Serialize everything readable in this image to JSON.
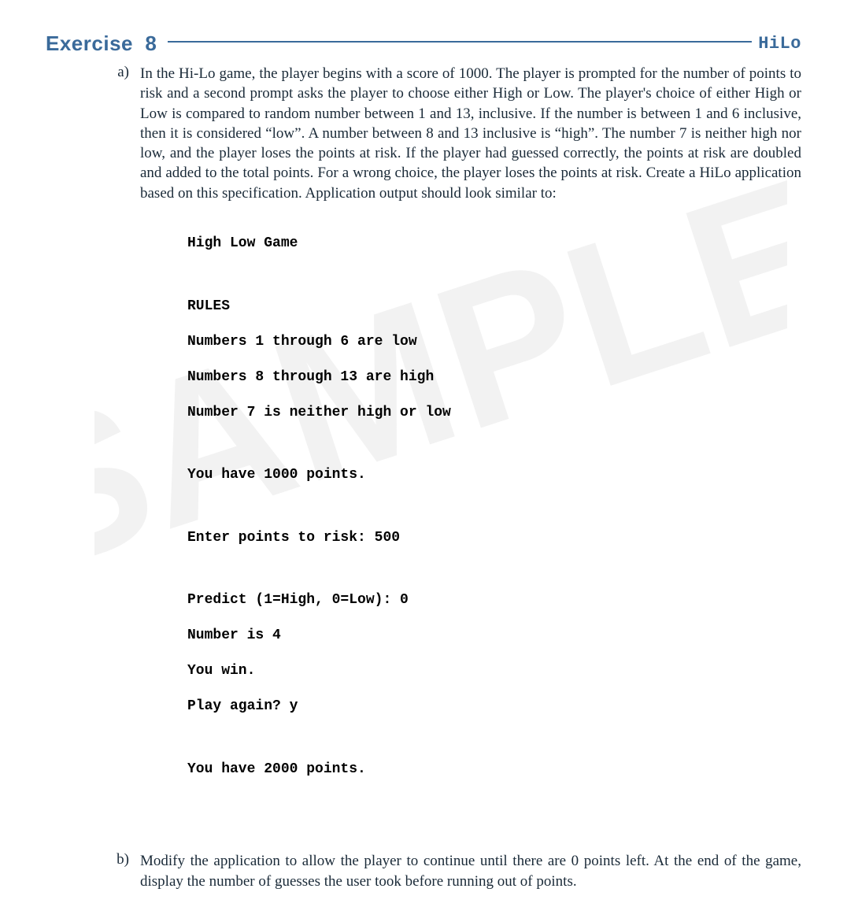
{
  "colors": {
    "heading": "#3a6a9a",
    "rule": "#3a6a9a",
    "body_text": "#1a2a38",
    "console_text": "#000000",
    "watermark": "#e9e9e9",
    "background": "#ffffff"
  },
  "typography": {
    "heading_family": "Arial, Helvetica, sans-serif",
    "heading_size_pt": 20,
    "body_family": "Palatino Linotype, Book Antiqua, Palatino, Georgia, serif",
    "body_size_pt": 14,
    "console_family": "Courier New, Courier, monospace",
    "console_size_pt": 13,
    "subtitle_family": "Courier New, Courier, monospace"
  },
  "heading": {
    "title": "Exercise  8",
    "subtitle": "HiLo"
  },
  "part_a": {
    "label": "a)",
    "text": "In the Hi-Lo game, the player begins with a score of 1000. The player is prompted for the number of points to risk and a second prompt asks the player to choose either High or Low. The player's choice of either High or Low is compared to random number between 1 and 13, inclusive. If the number is between 1 and 6 inclusive, then it is considered “low”. A number between 8 and 13 inclusive is “high”. The number 7 is neither high nor low, and the player loses the points at risk. If the player had guessed correctly, the points at risk are doubled and added to the total points. For a wrong choice, the player loses the points at risk. Create a HiLo application based on this specification. Application output should look similar to:"
  },
  "console": {
    "l1": "High Low Game",
    "l2": "RULES",
    "l3": "Numbers 1 through 6 are low",
    "l4": "Numbers 8 through 13 are high",
    "l5": "Number 7 is neither high or low",
    "l6": "You have 1000 points.",
    "l7": "Enter points to risk: 500",
    "l8": "Predict (1=High, 0=Low): 0",
    "l9": "Number is 4",
    "l10": "You win.",
    "l11": "Play again? y",
    "l12": "You have 2000 points."
  },
  "part_b": {
    "label": "b)",
    "text": "Modify the application to allow the player to continue until there are 0 points left. At the end of the game, display the number of guesses the user took before running out of points."
  },
  "watermark_text": "SAMPLE"
}
